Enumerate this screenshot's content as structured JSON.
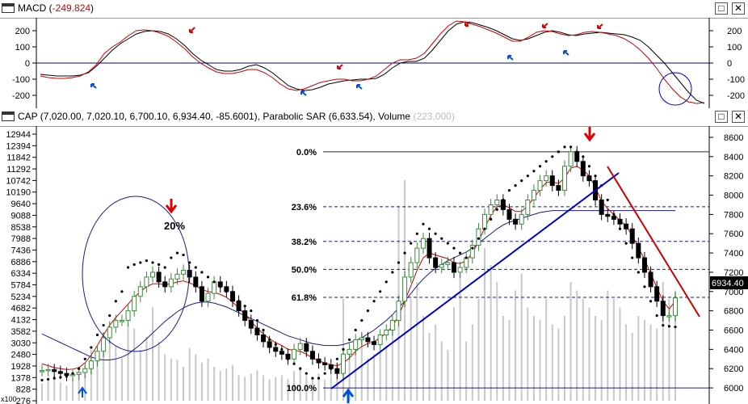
{
  "macd_panel": {
    "title_prefix": "MACD (",
    "title_value": "-249.824",
    "title_suffix": ")",
    "buttons": {
      "restore": "□",
      "close": "✕"
    }
  },
  "price_panel": {
    "title_prefix": "CAP (7,020.00, 7,020.10, 6,700.10, 6,934.40, -85.6001), Parabolic SAR (6,633.54), Volume",
    "title_hidden": "(223,000)",
    "buttons": {
      "restore": "□",
      "close": "✕"
    },
    "annotation_20pct": "20%",
    "price_tag": "6934.40",
    "volume_axis_note": "x100"
  },
  "colors": {
    "macd_line": "#000000",
    "signal_line": "#cc0000",
    "zero_line": "#00008b",
    "up_candle": "#3a8a3a",
    "down_candle": "#000000",
    "sar_dots": "#000000",
    "ma_short": "#cc0000",
    "ma_long": "#1a1a8c",
    "trendline": "#0000cc",
    "downtrend": "#cc0000",
    "volume": "#c8c8c8",
    "arrow_red": "#e00000",
    "arrow_blue": "#0050e0",
    "fib": "#1a1a8c"
  },
  "chart_data": [
    {
      "type": "line",
      "name": "MACD",
      "y_ticks": [
        200,
        100,
        0,
        -100,
        -200
      ],
      "ylim": [
        -260,
        260
      ],
      "x": [
        0,
        10,
        20,
        30,
        40,
        50,
        60,
        70,
        80,
        90,
        100,
        110,
        120,
        130,
        140,
        150,
        160,
        170,
        180,
        190,
        200,
        210,
        220,
        230,
        240,
        250,
        260,
        270,
        280,
        290,
        300,
        310,
        320,
        330,
        340,
        350,
        360,
        370,
        380,
        390,
        400,
        410,
        420,
        430,
        440,
        450,
        460,
        470,
        480,
        490,
        500,
        510,
        520,
        530,
        540,
        550,
        560,
        570,
        580,
        590,
        600,
        610,
        620,
        630,
        640,
        650,
        660,
        670,
        680,
        690,
        700,
        710,
        720,
        730,
        740,
        750,
        760,
        770,
        780,
        790,
        800,
        810,
        820,
        830
      ],
      "series": [
        {
          "values": [
            -70,
            -75,
            -80,
            -80,
            -80,
            -75,
            -60,
            -20,
            30,
            80,
            120,
            150,
            180,
            195,
            200,
            195,
            180,
            150,
            110,
            60,
            20,
            -10,
            -40,
            -50,
            -50,
            -40,
            -20,
            -10,
            -30,
            -60,
            -100,
            -140,
            -160,
            -170,
            -165,
            -150,
            -130,
            -120,
            -110,
            -105,
            -100,
            -100,
            -95,
            -70,
            -30,
            0,
            10,
            10,
            30,
            80,
            140,
            200,
            240,
            255,
            250,
            235,
            220,
            200,
            175,
            150,
            140,
            150,
            170,
            190,
            200,
            190,
            175,
            170,
            180,
            185,
            190,
            185,
            180,
            175,
            160,
            140,
            100,
            50,
            0,
            -60,
            -120,
            -180,
            -230,
            -250
          ]
        },
        {
          "values": [
            -80,
            -90,
            -95,
            -95,
            -90,
            -80,
            -55,
            -10,
            60,
            100,
            130,
            170,
            200,
            205,
            200,
            185,
            165,
            130,
            90,
            40,
            0,
            -30,
            -55,
            -65,
            -65,
            -55,
            -40,
            -40,
            -60,
            -90,
            -130,
            -160,
            -170,
            -160,
            -140,
            -120,
            -110,
            -100,
            -100,
            -110,
            -110,
            -100,
            -80,
            -40,
            0,
            20,
            20,
            30,
            60,
            120,
            180,
            230,
            260,
            255,
            240,
            225,
            205,
            185,
            160,
            135,
            135,
            160,
            190,
            200,
            195,
            180,
            170,
            175,
            190,
            195,
            190,
            180,
            170,
            150,
            120,
            80,
            30,
            -30,
            -100,
            -160,
            -210,
            -240,
            -250,
            -245
          ]
        }
      ]
    },
    {
      "type": "candlestick",
      "name": "CAP",
      "left_axis_ticks": [
        12944,
        12394,
        11842,
        11292,
        10742,
        10190,
        9640,
        9088,
        8538,
        7988,
        7436,
        6886,
        6334,
        5784,
        5234,
        4682,
        4132,
        3582,
        3030,
        2480,
        1928,
        1378,
        828,
        276
      ],
      "right_axis_ticks": [
        8600,
        8400,
        8200,
        8000,
        7800,
        7600,
        7400,
        7200,
        7000,
        6800,
        6600,
        6400,
        6200,
        6000
      ],
      "ylim": [
        5900,
        8650
      ],
      "x": [
        0,
        8,
        16,
        24,
        32,
        40,
        48,
        56,
        64,
        72,
        80,
        88,
        96,
        104,
        112,
        120,
        128,
        136,
        144,
        152,
        160,
        168,
        176,
        184,
        192,
        200,
        208,
        216,
        224,
        232,
        240,
        248,
        256,
        264,
        272,
        280,
        288,
        296,
        304,
        312,
        320,
        328,
        336,
        344,
        352,
        360,
        368,
        376,
        384,
        392,
        400,
        408,
        416,
        424,
        432,
        440,
        448,
        456,
        464,
        472,
        480,
        488,
        496,
        504,
        512,
        520,
        528,
        536,
        544,
        552,
        560,
        568,
        576,
        584,
        592,
        600,
        608,
        616,
        624,
        632,
        640,
        648,
        656,
        664,
        672,
        680,
        688,
        696,
        704,
        712,
        720,
        728,
        736,
        744,
        752,
        760,
        768,
        776,
        784,
        792,
        800,
        808,
        816,
        824
      ],
      "close": [
        6180,
        6190,
        6170,
        6150,
        6130,
        6140,
        6160,
        6200,
        6280,
        6380,
        6520,
        6630,
        6700,
        6700,
        6800,
        6950,
        7050,
        7150,
        7200,
        7100,
        7050,
        7130,
        7180,
        7220,
        7150,
        7050,
        6900,
        6980,
        7100,
        7050,
        7000,
        6900,
        6800,
        6700,
        6620,
        6550,
        6480,
        6420,
        6380,
        6350,
        6300,
        6400,
        6460,
        6380,
        6300,
        6260,
        6240,
        6200,
        6150,
        6350,
        6400,
        6500,
        6520,
        6480,
        6450,
        6550,
        6600,
        6700,
        6900,
        7150,
        7300,
        7450,
        7550,
        7350,
        7250,
        7280,
        7300,
        7200,
        7250,
        7350,
        7480,
        7650,
        7800,
        7900,
        7950,
        7850,
        7750,
        7700,
        7800,
        7950,
        8050,
        8150,
        8200,
        8100,
        8050,
        8300,
        8450,
        8350,
        8200,
        8150,
        7950,
        7800,
        7780,
        7750,
        7700,
        7650,
        7500,
        7350,
        7200,
        7050,
        6900,
        6750,
        6750,
        6934
      ],
      "sar": [
        6080,
        6090,
        6100,
        6110,
        6120,
        6150,
        6200,
        6300,
        6420,
        6550,
        6650,
        6750,
        6900,
        7000,
        7250,
        7280,
        7300,
        7320,
        7300,
        7280,
        7250,
        7350,
        7400,
        7380,
        7300,
        7250,
        7200,
        7150,
        7100,
        7050,
        7000,
        6950,
        6900,
        6850,
        6800,
        6700,
        6600,
        6500,
        6450,
        6400,
        6300,
        6250,
        6200,
        6150,
        6100,
        6100,
        6150,
        6200,
        6300,
        6400,
        6500,
        6600,
        6700,
        6800,
        6900,
        7000,
        7100,
        7200,
        7300,
        7400,
        7500,
        7600,
        7700,
        7650,
        7600,
        7550,
        7500,
        7450,
        7400,
        7350,
        7450,
        7550,
        7650,
        7750,
        7850,
        7950,
        8050,
        8100,
        8150,
        8200,
        8250,
        8300,
        8350,
        8400,
        8450,
        8500,
        8500,
        8450,
        8400,
        8300,
        8200,
        8100,
        7950,
        7800,
        7650,
        7500,
        7350,
        7200,
        7050,
        6900,
        6750,
        6650,
        6640,
        6633
      ],
      "ma_short": [
        6250,
        6230,
        6210,
        6200,
        6190,
        6195,
        6210,
        6260,
        6340,
        6440,
        6550,
        6650,
        6730,
        6800,
        6870,
        6940,
        7000,
        7050,
        7080,
        7080,
        7070,
        7080,
        7100,
        7110,
        7090,
        7060,
        7020,
        7000,
        6990,
        6970,
        6940,
        6890,
        6830,
        6760,
        6690,
        6620,
        6560,
        6510,
        6470,
        6440,
        6400,
        6390,
        6380,
        6350,
        6310,
        6280,
        6260,
        6240,
        6230,
        6260,
        6310,
        6380,
        6430,
        6460,
        6480,
        6520,
        6570,
        6640,
        6750,
        6900,
        7060,
        7220,
        7350,
        7400,
        7380,
        7360,
        7340,
        7300,
        7290,
        7320,
        7400,
        7520,
        7660,
        7790,
        7880,
        7900,
        7870,
        7830,
        7830,
        7890,
        7970,
        8060,
        8130,
        8140,
        8120,
        8180,
        8280,
        8300,
        8260,
        8200,
        8080,
        7940,
        7860,
        7800,
        7740,
        7680,
        7580,
        7460,
        7330,
        7190,
        7040,
        6900,
        6820,
        6900
      ],
      "ma_long": [
        6560,
        6530,
        6500,
        6470,
        6440,
        6410,
        6380,
        6350,
        6320,
        6300,
        6290,
        6290,
        6300,
        6320,
        6350,
        6400,
        6450,
        6510,
        6570,
        6630,
        6690,
        6740,
        6790,
        6830,
        6860,
        6880,
        6890,
        6890,
        6880,
        6860,
        6840,
        6810,
        6780,
        6750,
        6720,
        6690,
        6660,
        6630,
        6600,
        6570,
        6540,
        6520,
        6500,
        6480,
        6460,
        6450,
        6440,
        6440,
        6440,
        6450,
        6470,
        6490,
        6520,
        6560,
        6600,
        6650,
        6700,
        6760,
        6830,
        6900,
        6980,
        7060,
        7130,
        7190,
        7240,
        7280,
        7320,
        7350,
        7380,
        7410,
        7450,
        7500,
        7550,
        7600,
        7650,
        7690,
        7720,
        7740,
        7760,
        7780,
        7800,
        7820,
        7830,
        7840,
        7840,
        7840,
        7840,
        7840,
        7840,
        7840,
        7840,
        7840,
        7840,
        7840,
        7840,
        7840,
        7840,
        7840,
        7840,
        7840,
        7840,
        7840,
        7840,
        7840
      ],
      "volume": [
        20,
        25,
        30,
        22,
        18,
        26,
        35,
        42,
        60,
        55,
        80,
        70,
        65,
        50,
        90,
        85,
        60,
        75,
        110,
        70,
        55,
        50,
        48,
        40,
        62,
        55,
        45,
        50,
        40,
        35,
        38,
        42,
        30,
        28,
        32,
        36,
        30,
        25,
        28,
        30,
        26,
        35,
        40,
        30,
        28,
        32,
        25,
        30,
        45,
        120,
        60,
        70,
        80,
        50,
        55,
        60,
        65,
        90,
        230,
        260,
        120,
        140,
        100,
        80,
        90,
        70,
        60,
        110,
        150,
        70,
        90,
        120,
        180,
        160,
        140,
        100,
        95,
        130,
        150,
        110,
        100,
        95,
        120,
        90,
        85,
        100,
        140,
        130,
        120,
        110,
        100,
        95,
        130,
        120,
        110,
        90,
        80,
        100,
        95,
        90,
        85,
        140,
        120,
        130
      ],
      "fibonacci": [
        {
          "label": "0.0%",
          "value": 8450
        },
        {
          "label": "23.6%",
          "value": 7880
        },
        {
          "label": "38.2%",
          "value": 7520
        },
        {
          "label": "50.0%",
          "value": 7230
        },
        {
          "label": "61.8%",
          "value": 6940
        },
        {
          "label": "100.0%",
          "value": 6000
        }
      ]
    }
  ]
}
